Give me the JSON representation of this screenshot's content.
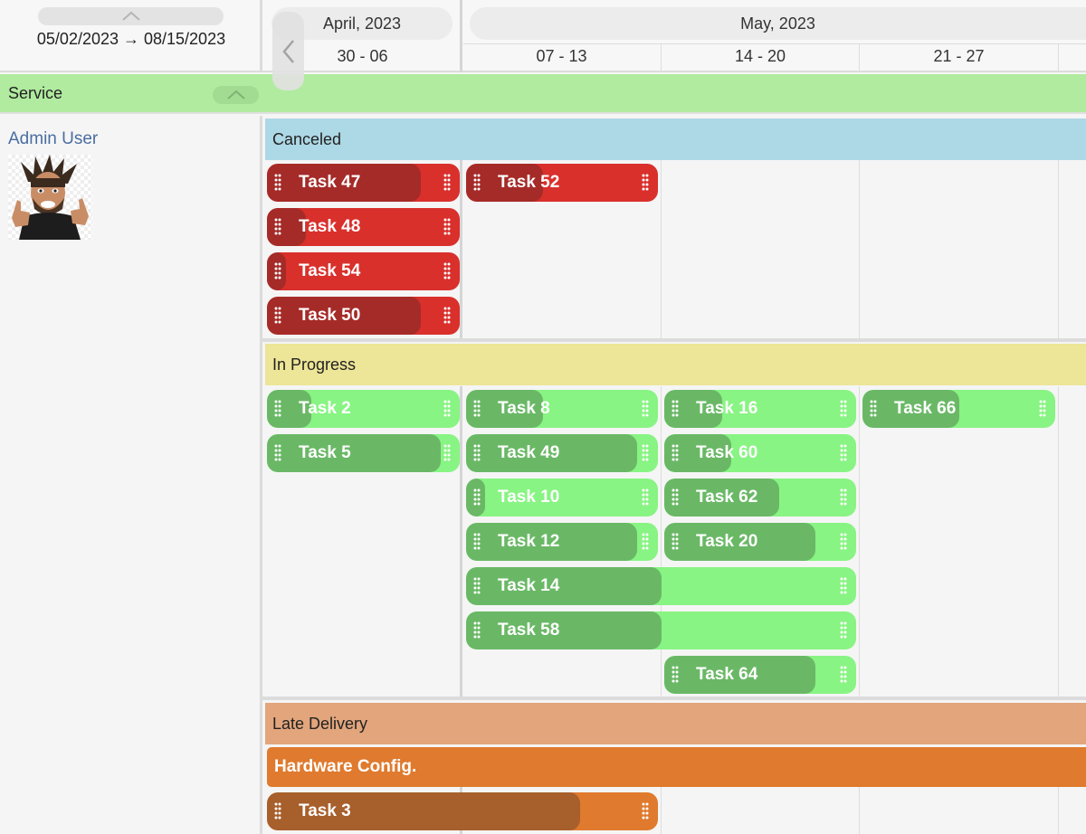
{
  "range": {
    "text": "05/02/2023 → 08/15/2023"
  },
  "timeline": {
    "months": [
      {
        "label": "April, 2023"
      },
      {
        "label": "May, 2023"
      }
    ],
    "weeks": [
      {
        "label": "30 - 06"
      },
      {
        "label": "07 - 13"
      },
      {
        "label": "14 - 20"
      },
      {
        "label": "21 - 27"
      }
    ]
  },
  "group": {
    "label": "Service"
  },
  "user": {
    "name": "Admin User"
  },
  "lanes": {
    "canceled": "Canceled",
    "in_progress": "In Progress",
    "late_delivery": "Late Delivery"
  },
  "subgroup": {
    "label": "Hardware Config."
  },
  "colors": {
    "canceled": "#add8e6",
    "in_progress": "#ede597",
    "late_delivery": "#e2a57c",
    "service": "#b0eb9f",
    "task_red": "#d9302c",
    "task_green": "#88f483",
    "task_orange": "#df7a2e"
  },
  "tasks": {
    "canceled": [
      {
        "name": "Task 47",
        "progress": 0.8
      },
      {
        "name": "Task 52",
        "progress": 0.4
      },
      {
        "name": "Task 48",
        "progress": 0.2
      },
      {
        "name": "Task 54",
        "progress": 0.1
      },
      {
        "name": "Task 50",
        "progress": 0.8
      }
    ],
    "in_progress": [
      {
        "name": "Task 2",
        "progress": 0.23
      },
      {
        "name": "Task 8",
        "progress": 0.4
      },
      {
        "name": "Task 16",
        "progress": 0.3
      },
      {
        "name": "Task 66",
        "progress": 0.5
      },
      {
        "name": "Task 5",
        "progress": 0.9
      },
      {
        "name": "Task 49",
        "progress": 0.89
      },
      {
        "name": "Task 60",
        "progress": 0.35
      },
      {
        "name": "Task 10",
        "progress": 0.1
      },
      {
        "name": "Task 62",
        "progress": 0.6
      },
      {
        "name": "Task 12",
        "progress": 0.89
      },
      {
        "name": "Task 20",
        "progress": 0.79
      },
      {
        "name": "Task 14",
        "progress": 0.5
      },
      {
        "name": "Task 58",
        "progress": 0.5
      },
      {
        "name": "Task 64",
        "progress": 0.79
      }
    ],
    "late_delivery": [
      {
        "name": "Task 3",
        "progress": 0.8
      }
    ]
  }
}
